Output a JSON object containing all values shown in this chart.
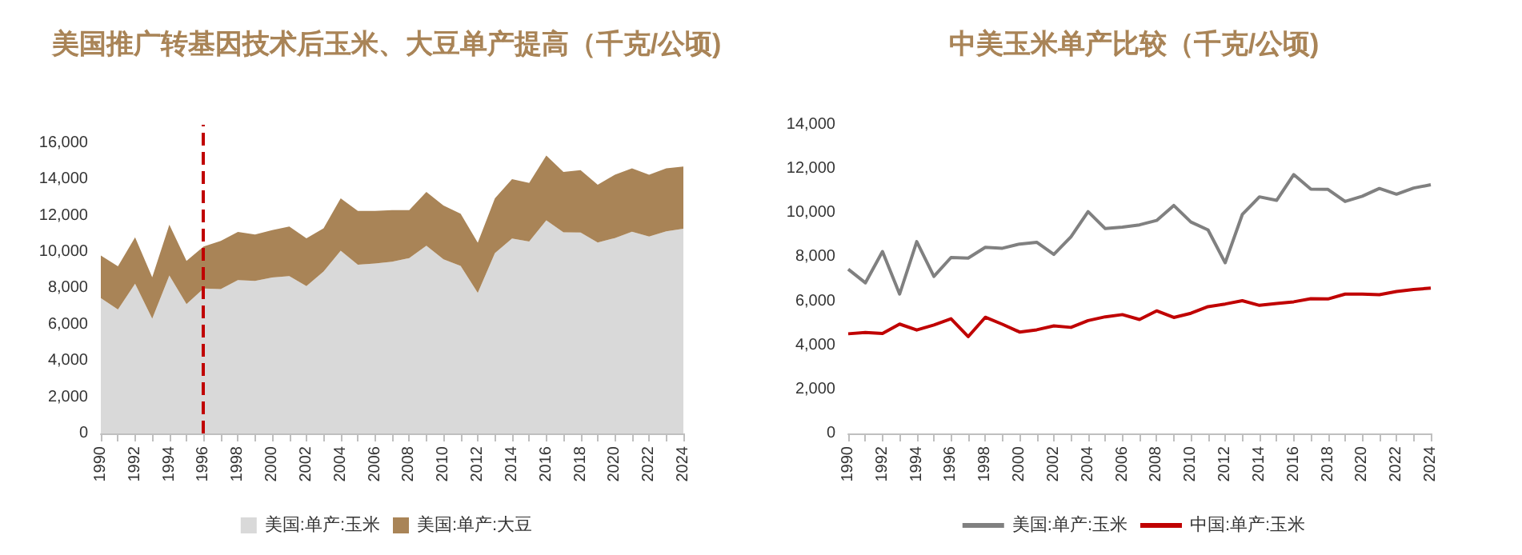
{
  "chart_data": [
    {
      "type": "area",
      "stacked": true,
      "title": "美国推广转基因技术后玉米、大豆单产提高（千克/公顷)",
      "categories": [
        "1990",
        null,
        "1992",
        null,
        "1994",
        null,
        "1996",
        null,
        "1998",
        null,
        "2000",
        null,
        "2002",
        null,
        "2004",
        null,
        "2006",
        null,
        "2008",
        null,
        "2010",
        null,
        "2012",
        null,
        "2014",
        null,
        "2016",
        null,
        "2018",
        null,
        "2020",
        null,
        "2022",
        null,
        "2024"
      ],
      "series": [
        {
          "name": "美国:单产:玉米",
          "color": "#d9d9d9",
          "values": [
            7450,
            6830,
            8250,
            6320,
            8700,
            7120,
            7980,
            7950,
            8440,
            8400,
            8590,
            8670,
            8120,
            8920,
            10060,
            9290,
            9360,
            9460,
            9660,
            10340,
            9590,
            9230,
            7740,
            9930,
            10730,
            10570,
            11740,
            11080,
            11070,
            10520,
            10760,
            11110,
            10850,
            11130,
            11280
          ]
        },
        {
          "name": "美国:单产:大豆",
          "color": "#a98457",
          "values": [
            2350,
            2370,
            2550,
            2280,
            2800,
            2380,
            2320,
            2650,
            2660,
            2550,
            2610,
            2730,
            2630,
            2380,
            2890,
            2960,
            2890,
            2840,
            2640,
            2960,
            2960,
            2870,
            2760,
            3020,
            3270,
            3230,
            3560,
            3320,
            3430,
            3180,
            3490,
            3490,
            3400,
            3470,
            3420
          ]
        }
      ],
      "ylim": [
        0,
        17000
      ],
      "yticks": [
        0,
        {
          "value": 2000,
          "label": "2,000"
        },
        {
          "value": 4000,
          "label": "4,000"
        },
        {
          "value": 6000,
          "label": "6,000"
        },
        {
          "value": 8000,
          "label": "8,000"
        },
        {
          "value": 10000,
          "label": "10,000"
        },
        {
          "value": 12000,
          "label": "12,000"
        },
        {
          "value": 14000,
          "label": "14,000"
        },
        {
          "value": 16000,
          "label": "16,000"
        }
      ],
      "grid": false,
      "legend": "bottom",
      "ref_lines": [
        {
          "axis": "x",
          "value": "1996",
          "color": "#c00000",
          "line_style": "dashed"
        }
      ]
    },
    {
      "type": "line",
      "title": "中美玉米单产比较（千克/公顷)",
      "categories": [
        "1990",
        null,
        "1992",
        null,
        "1994",
        null,
        "1996",
        null,
        "1998",
        null,
        "2000",
        null,
        "2002",
        null,
        "2004",
        null,
        "2006",
        null,
        "2008",
        null,
        "2010",
        null,
        "2012",
        null,
        "2014",
        null,
        "2016",
        null,
        "2018",
        null,
        "2020",
        null,
        "2022",
        null,
        "2024"
      ],
      "series": [
        {
          "name": "美国:单产:玉米",
          "color": "#808080",
          "values": [
            7450,
            6830,
            8250,
            6320,
            8700,
            7120,
            7980,
            7950,
            8440,
            8400,
            8590,
            8670,
            8120,
            8920,
            10060,
            9290,
            9360,
            9460,
            9660,
            10340,
            9590,
            9230,
            7740,
            9930,
            10730,
            10570,
            11740,
            11080,
            11070,
            10520,
            10760,
            11110,
            10850,
            11130,
            11280
          ]
        },
        {
          "name": "中国:单产:玉米",
          "color": "#c00000",
          "values": [
            4520,
            4580,
            4530,
            4960,
            4690,
            4920,
            5200,
            4390,
            5270,
            4950,
            4600,
            4700,
            4880,
            4810,
            5120,
            5290,
            5390,
            5170,
            5560,
            5260,
            5450,
            5750,
            5870,
            6020,
            5810,
            5890,
            5970,
            6110,
            6100,
            6320,
            6320,
            6290,
            6440,
            6530,
            6590
          ]
        }
      ],
      "ylim": [
        0,
        14000
      ],
      "yticks": [
        0,
        {
          "value": 2000,
          "label": "2,000"
        },
        {
          "value": 4000,
          "label": "4,000"
        },
        {
          "value": 6000,
          "label": "6,000"
        },
        {
          "value": 8000,
          "label": "8,000"
        },
        {
          "value": 10000,
          "label": "10,000"
        },
        {
          "value": 12000,
          "label": "12,000"
        },
        {
          "value": 14000,
          "label": "14,000"
        }
      ],
      "grid": false,
      "legend": "bottom",
      "marker": "none",
      "line_style": "solid"
    }
  ]
}
